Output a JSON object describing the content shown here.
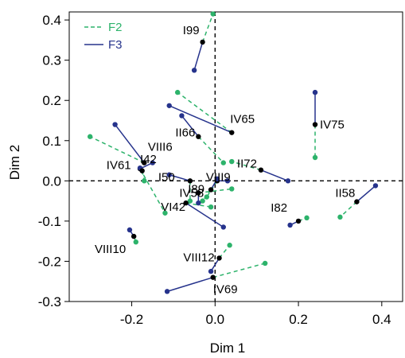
{
  "chart_data": {
    "type": "scatter",
    "title": "",
    "xlabel": "Dim 1",
    "ylabel": "Dim 2",
    "xlim": [
      -0.35,
      0.45
    ],
    "ylim": [
      -0.3,
      0.42
    ],
    "xticks": [
      -0.2,
      0.0,
      0.2,
      0.4
    ],
    "yticks": [
      -0.3,
      -0.2,
      -0.1,
      0.0,
      0.1,
      0.2,
      0.3,
      0.4
    ],
    "xtick_labels": [
      "-0.2",
      "0.0",
      "0.2",
      "0.4"
    ],
    "ytick_labels": [
      "-0.3",
      "-0.2",
      "-0.1",
      "0.0",
      "0.1",
      "0.2",
      "0.3",
      "0.4"
    ],
    "grid": false,
    "reference_lines": [
      "x=0",
      "y=0"
    ],
    "legend": {
      "position": "top-left",
      "entries": [
        {
          "name": "F2",
          "color": "#2db36b",
          "style": "dashed"
        },
        {
          "name": "F3",
          "color": "#26338c",
          "style": "solid"
        }
      ]
    },
    "colors": {
      "center": "#000000",
      "F2": "#2db36b",
      "F3": "#26338c"
    },
    "points": [
      {
        "label": "I99",
        "center": [
          -0.03,
          0.345
        ],
        "F2": [
          -0.005,
          0.415
        ],
        "F3": [
          -0.05,
          0.275
        ]
      },
      {
        "label": "IV65",
        "center": [
          0.04,
          0.12
        ],
        "F2": [
          -0.09,
          0.22
        ],
        "F3": [
          -0.11,
          0.187
        ]
      },
      {
        "label": "IV75",
        "center": [
          0.24,
          0.14
        ],
        "F2": [
          0.24,
          0.058
        ],
        "F3": [
          0.24,
          0.22
        ]
      },
      {
        "label": "II66",
        "center": [
          -0.04,
          0.11
        ],
        "F2": [
          0.02,
          0.045
        ],
        "F3": [
          -0.08,
          0.162
        ]
      },
      {
        "label": "II72",
        "center": [
          0.11,
          0.027
        ],
        "F2": [
          0.04,
          0.048
        ],
        "F3": [
          0.175,
          0.0
        ]
      },
      {
        "label": "VIII6",
        "center": [
          -0.17,
          0.045
        ],
        "F2": [
          -0.3,
          0.11
        ],
        "F3": [
          -0.24,
          0.14
        ]
      },
      {
        "label": "I42",
        "center": [
          -0.18,
          0.03
        ],
        "F2": [
          -0.12,
          -0.08
        ],
        "F3": [
          -0.15,
          0.045
        ]
      },
      {
        "label": "IV61",
        "center": [
          -0.175,
          0.025
        ],
        "F2": [
          -0.17,
          0.0
        ],
        "F3": [
          -0.18,
          0.032
        ]
      },
      {
        "label": "I50",
        "center": [
          -0.06,
          0.0
        ],
        "F2": [
          -0.06,
          -0.05
        ],
        "F3": [
          -0.11,
          0.015
        ]
      },
      {
        "label": "VIII9",
        "center": [
          0.005,
          0.0
        ],
        "F2": [
          -0.02,
          -0.04
        ],
        "F3": [
          0.03,
          0.0
        ]
      },
      {
        "label": "I89",
        "center": [
          -0.01,
          -0.022
        ],
        "F2": [
          -0.03,
          -0.05
        ],
        "F3": [
          0.005,
          0.005
        ]
      },
      {
        "label": "IV58",
        "center": [
          -0.04,
          -0.03
        ],
        "F2": [
          0.04,
          -0.02
        ],
        "F3": [
          -0.04,
          -0.055
        ]
      },
      {
        "label": "VI42",
        "center": [
          -0.07,
          -0.055
        ],
        "F2": [
          -0.01,
          -0.065
        ],
        "F3": [
          0.02,
          -0.115
        ]
      },
      {
        "label": "II58",
        "center": [
          0.34,
          -0.052
        ],
        "F2": [
          0.3,
          -0.09
        ],
        "F3": [
          0.385,
          -0.012
        ]
      },
      {
        "label": "I82",
        "center": [
          0.2,
          -0.1
        ],
        "F2": [
          0.22,
          -0.092
        ],
        "F3": [
          0.18,
          -0.11
        ]
      },
      {
        "label": "VIII10",
        "center": [
          -0.195,
          -0.138
        ],
        "F2": [
          -0.19,
          -0.152
        ],
        "F3": [
          -0.205,
          -0.122
        ]
      },
      {
        "label": "VIII12",
        "center": [
          0.01,
          -0.192
        ],
        "F2": [
          0.035,
          -0.16
        ],
        "F3": [
          -0.01,
          -0.225
        ]
      },
      {
        "label": "IV69",
        "center": [
          -0.005,
          -0.24
        ],
        "F2": [
          0.12,
          -0.205
        ],
        "F3": [
          -0.115,
          -0.275
        ]
      }
    ]
  }
}
